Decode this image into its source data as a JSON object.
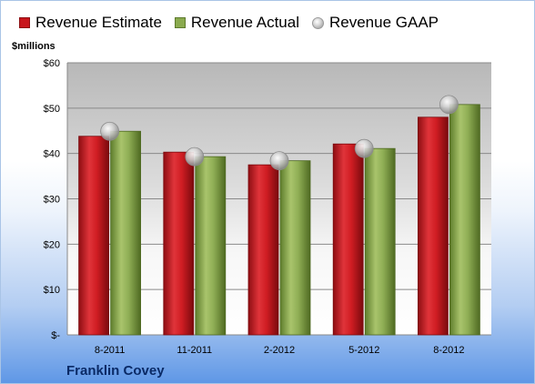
{
  "legend": {
    "estimate": "Revenue Estimate",
    "actual": "Revenue Actual",
    "gaap": "Revenue GAAP"
  },
  "unit_label": "$millions",
  "company": "Franklin Covey",
  "colors": {
    "estimate": "#c8161c",
    "actual": "#8aaa4e",
    "gaap": "#bfbfbf"
  },
  "chart_data": {
    "type": "bar",
    "categories": [
      "8-2011",
      "11-2011",
      "2-2012",
      "5-2012",
      "8-2012"
    ],
    "series": [
      {
        "name": "Revenue Estimate",
        "values": [
          43.8,
          40.3,
          37.5,
          42.1,
          48.0
        ]
      },
      {
        "name": "Revenue Actual",
        "values": [
          44.9,
          39.3,
          38.4,
          41.1,
          50.8
        ]
      },
      {
        "name": "Revenue GAAP",
        "values": [
          44.9,
          39.3,
          38.4,
          41.1,
          50.8
        ],
        "marker": "circle"
      }
    ],
    "ylim": [
      0,
      60
    ],
    "yticks": [
      0,
      10,
      20,
      30,
      40,
      50,
      60
    ],
    "ytick_labels": [
      "$-",
      "$10",
      "$20",
      "$30",
      "$40",
      "$50",
      "$60"
    ],
    "grid": true,
    "legend": "top"
  }
}
